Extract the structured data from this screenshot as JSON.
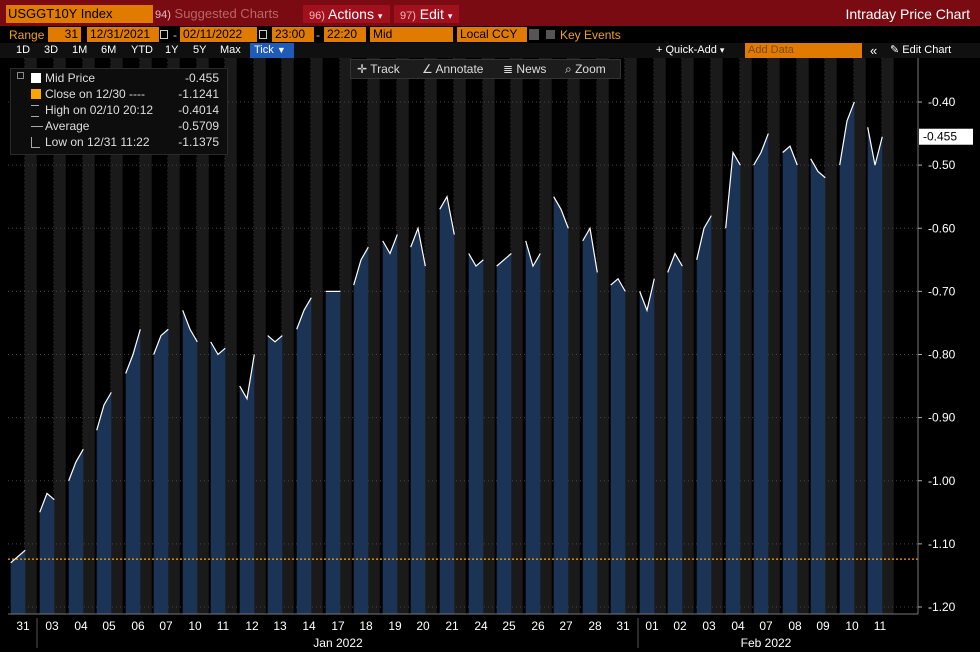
{
  "header": {
    "ticker": "USGGT10Y Index",
    "suggested": {
      "num": "94)",
      "label": "Suggested Charts"
    },
    "actions": {
      "num": "96)",
      "label": "Actions",
      "arrow": "▾"
    },
    "edit": {
      "num": "97)",
      "label": "Edit",
      "arrow": "▾"
    },
    "title": "Intraday Price Chart"
  },
  "range": {
    "label": "Range",
    "days": "31",
    "start_date": "12/31/2021",
    "dash": "-",
    "end_date": "02/11/2022",
    "start_time": "23:00",
    "time_dash": "-",
    "end_time": "22:20",
    "price_type": "Mid",
    "currency": "Local CCY",
    "key_events": "Key Events"
  },
  "periods": [
    "1D",
    "3D",
    "1M",
    "6M",
    "YTD",
    "1Y",
    "5Y",
    "Max"
  ],
  "period_active": {
    "label": "Tick",
    "arrow": "▼"
  },
  "quick_add": {
    "label": "Quick-Add",
    "arrow": "▾"
  },
  "add_data": {
    "placeholder": "Add Data"
  },
  "edit_chart": {
    "chevrons": "«",
    "label": "Edit Chart"
  },
  "chart_tools": [
    "Track",
    "Annotate",
    "News",
    "Zoom"
  ],
  "legend": {
    "rows": [
      {
        "name": "Mid Price",
        "value": "-0.455"
      },
      {
        "name": "Close on 12/30 ----",
        "value": "-1.1241"
      },
      {
        "name": "High on 02/10 20:12",
        "value": "-0.4014"
      },
      {
        "name": "Average",
        "value": "-0.5709"
      },
      {
        "name": "Low on 12/31 11:22",
        "value": "-1.1375"
      }
    ]
  },
  "colors": {
    "header_bg": "#7a0b13",
    "orange": "#e07b00",
    "area_fill": "#1b3354",
    "night_band": "#1a1a1a",
    "close_line": "#ffa500",
    "tick_active": "#1f5bb8"
  },
  "chart_data": {
    "type": "area",
    "ylim": [
      -1.2,
      -0.4
    ],
    "yticks": [
      "-0.40",
      "-0.50",
      "-0.60",
      "-0.70",
      "-0.80",
      "-0.90",
      "-1.00",
      "-1.10",
      "-1.20"
    ],
    "ytick_values": [
      -0.4,
      -0.5,
      -0.6,
      -0.7,
      -0.8,
      -0.9,
      -1.0,
      -1.1,
      -1.2
    ],
    "last_value_label": "-0.455",
    "last_value": -0.455,
    "close_reference": -1.1241,
    "days": [
      "31",
      "03",
      "04",
      "05",
      "06",
      "07",
      "10",
      "11",
      "12",
      "13",
      "14",
      "17",
      "18",
      "19",
      "20",
      "21",
      "24",
      "25",
      "26",
      "27",
      "28",
      "31",
      "01",
      "02",
      "03",
      "04",
      "07",
      "08",
      "09",
      "10",
      "11"
    ],
    "month_labels": [
      "Jan 2022",
      "Feb 2022"
    ],
    "daily_values": [
      [
        -1.13,
        -1.12,
        -1.11
      ],
      [
        -1.05,
        -1.02,
        -1.03
      ],
      [
        -1.0,
        -0.97,
        -0.95
      ],
      [
        -0.92,
        -0.88,
        -0.86
      ],
      [
        -0.83,
        -0.8,
        -0.76
      ],
      [
        -0.8,
        -0.77,
        -0.76
      ],
      [
        -0.73,
        -0.76,
        -0.78
      ],
      [
        -0.78,
        -0.8,
        -0.79
      ],
      [
        -0.85,
        -0.87,
        -0.8
      ],
      [
        -0.77,
        -0.78,
        -0.77
      ],
      [
        -0.76,
        -0.73,
        -0.71
      ],
      [
        -0.7,
        -0.7,
        -0.7
      ],
      [
        -0.69,
        -0.65,
        -0.63
      ],
      [
        -0.62,
        -0.64,
        -0.61
      ],
      [
        -0.63,
        -0.6,
        -0.66
      ],
      [
        -0.57,
        -0.55,
        -0.61
      ],
      [
        -0.64,
        -0.66,
        -0.65
      ],
      [
        -0.66,
        -0.65,
        -0.64
      ],
      [
        -0.62,
        -0.66,
        -0.64
      ],
      [
        -0.55,
        -0.57,
        -0.6
      ],
      [
        -0.62,
        -0.6,
        -0.67
      ],
      [
        -0.69,
        -0.68,
        -0.7
      ],
      [
        -0.7,
        -0.73,
        -0.68
      ],
      [
        -0.67,
        -0.64,
        -0.66
      ],
      [
        -0.65,
        -0.6,
        -0.58
      ],
      [
        -0.6,
        -0.48,
        -0.5
      ],
      [
        -0.5,
        -0.48,
        -0.45
      ],
      [
        -0.48,
        -0.47,
        -0.5
      ],
      [
        -0.49,
        -0.51,
        -0.52
      ],
      [
        -0.5,
        -0.43,
        -0.4
      ],
      [
        -0.44,
        -0.5,
        -0.455
      ]
    ]
  }
}
